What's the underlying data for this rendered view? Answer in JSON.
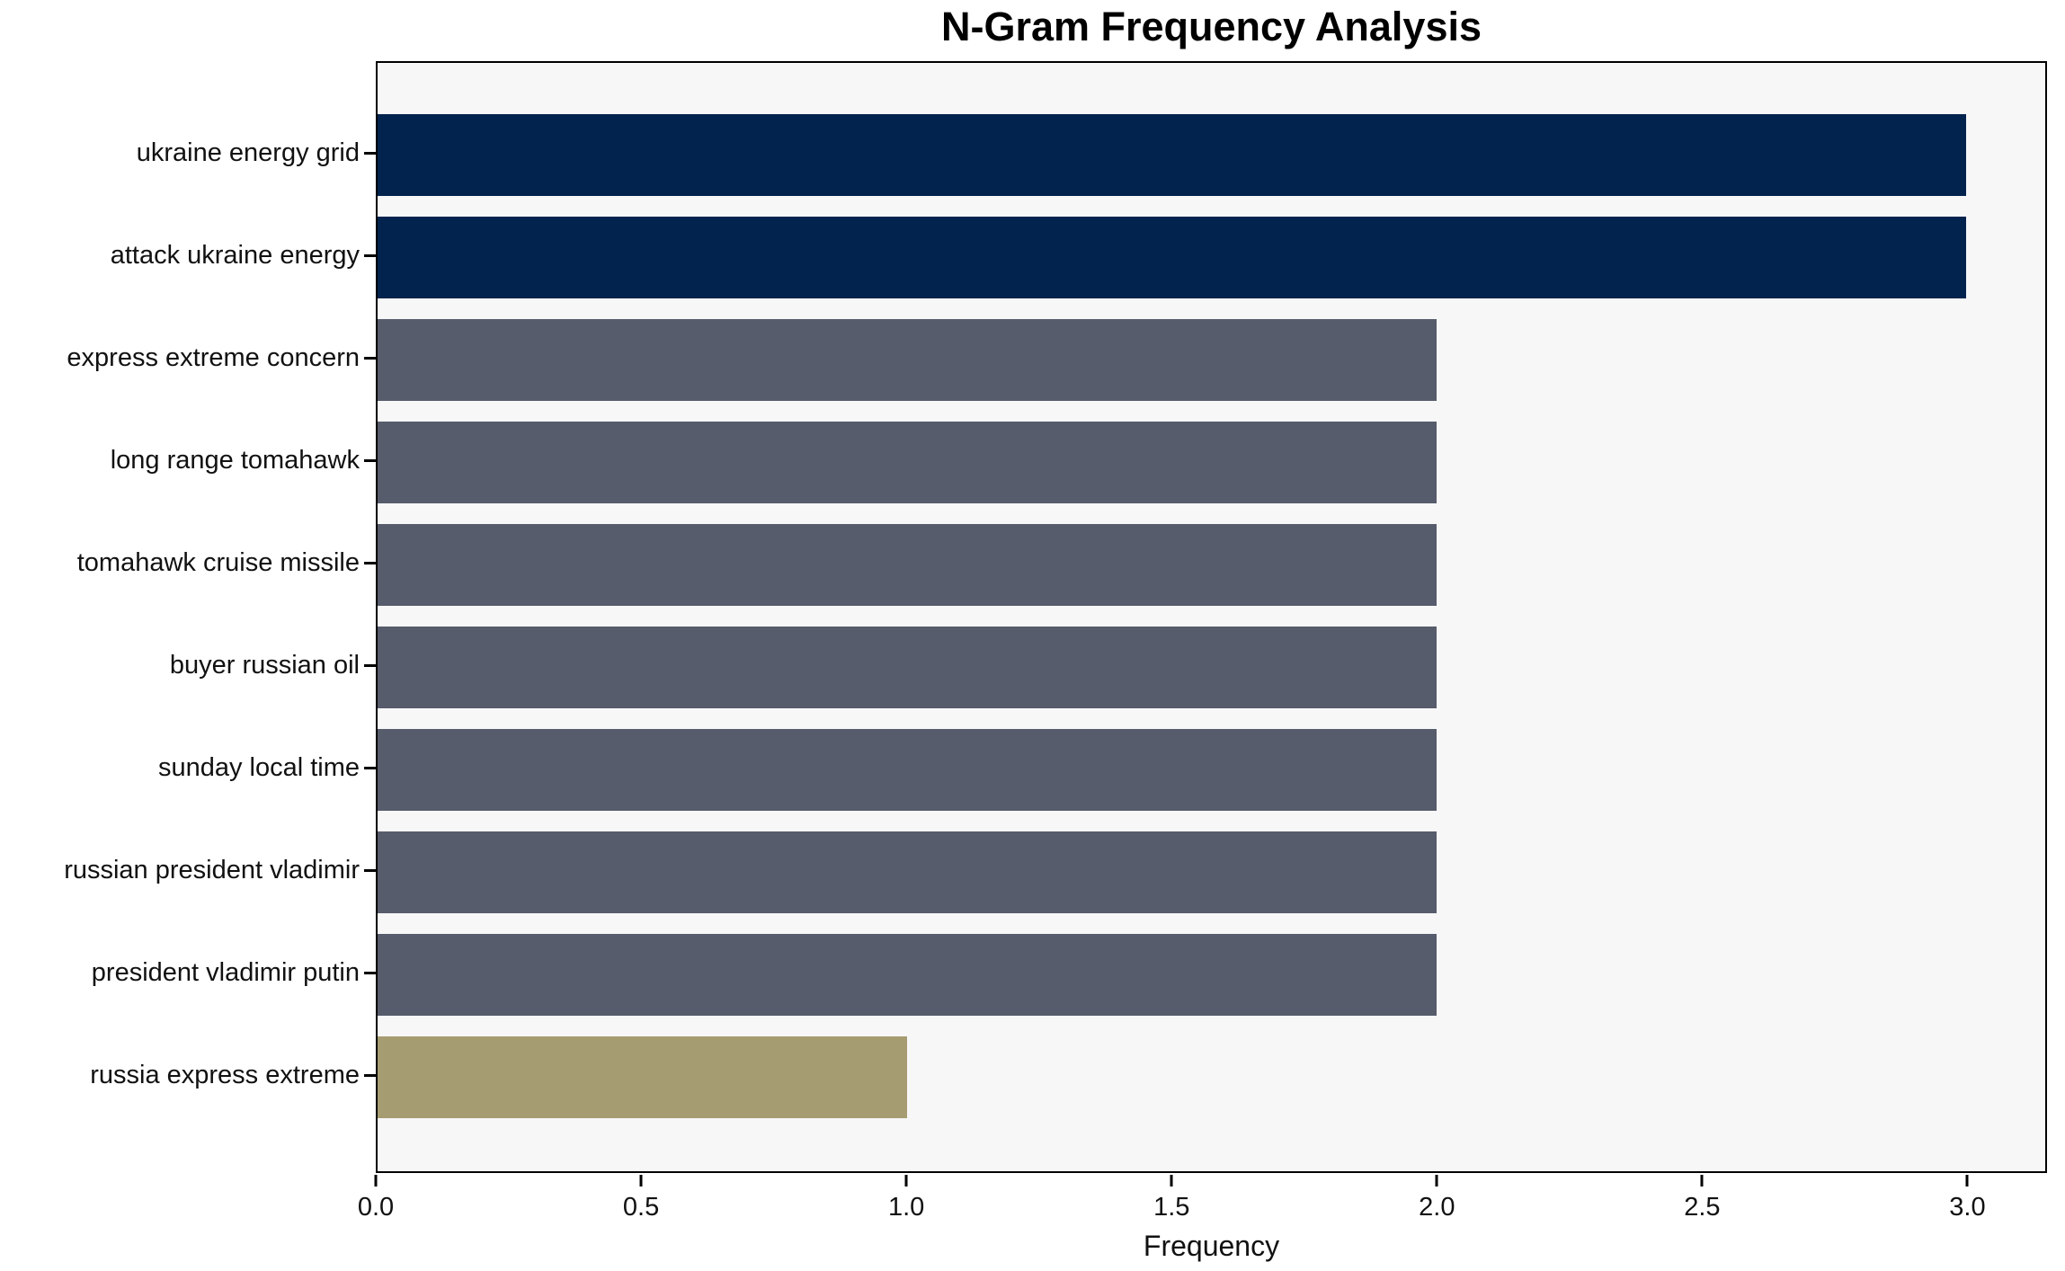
{
  "title": "N-Gram Frequency Analysis",
  "chart_data": {
    "type": "bar",
    "orientation": "horizontal",
    "title": "N-Gram Frequency Analysis",
    "xlabel": "Frequency",
    "ylabel": "",
    "categories": [
      "ukraine energy grid",
      "attack ukraine energy",
      "express extreme concern",
      "long range tomahawk",
      "tomahawk cruise missile",
      "buyer russian oil",
      "sunday local time",
      "russian president vladimir",
      "president vladimir putin",
      "russia express extreme"
    ],
    "values": [
      3,
      3,
      2,
      2,
      2,
      2,
      2,
      2,
      2,
      1
    ],
    "bar_colors": [
      "#02234d",
      "#02234d",
      "#565c6b",
      "#565c6b",
      "#565c6b",
      "#565c6b",
      "#565c6b",
      "#565c6b",
      "#565c6b",
      "#a69c71"
    ],
    "color_legend": {
      "frequency_3": "#02234d",
      "frequency_2": "#565c6b",
      "frequency_1": "#a69c71"
    },
    "xlim": [
      0,
      3.15
    ],
    "xticks": [
      0.0,
      0.5,
      1.0,
      1.5,
      2.0,
      2.5,
      3.0
    ],
    "xtick_labels": [
      "0.0",
      "0.5",
      "1.0",
      "1.5",
      "2.0",
      "2.5",
      "3.0"
    ],
    "grid": false,
    "legend_position": "none",
    "plot_background": "#f7f7f8",
    "figure_background": "#ffffff"
  }
}
